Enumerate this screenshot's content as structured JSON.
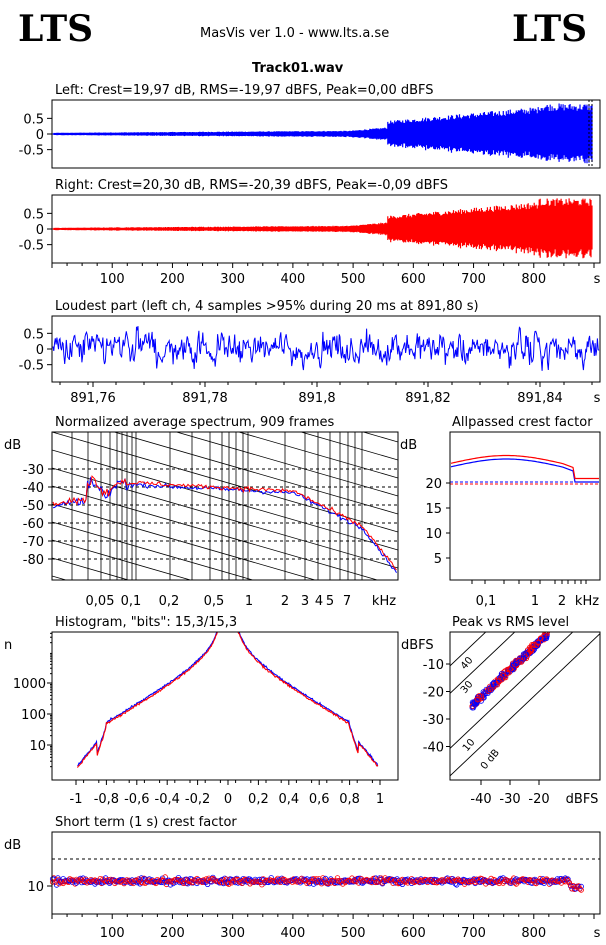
{
  "header": {
    "logo_left": "LTS",
    "logo_right": "LTS",
    "app": "MasVis ver 1.0 - www.lts.a.se",
    "file": "Track01.wav"
  },
  "colors": {
    "left": "#0000ff",
    "right": "#ff0000",
    "grid": "#000000"
  },
  "chart_data": [
    {
      "type": "line",
      "title": "Left: Crest=19,97 dB, RMS=-19,97 dBFS, Peak=0,00 dBFS",
      "series": [
        {
          "name": "left",
          "color": "#0000ff"
        }
      ],
      "ylim": [
        -1,
        1
      ],
      "yticks": [
        "0.5",
        "0",
        "-0.5"
      ],
      "xlim": [
        0,
        900
      ]
    },
    {
      "type": "line",
      "title": "Right: Crest=20,30 dB, RMS=-20,39 dBFS, Peak=-0,09 dBFS",
      "series": [
        {
          "name": "right",
          "color": "#ff0000"
        }
      ],
      "ylim": [
        -1,
        1
      ],
      "yticks": [
        "0.5",
        "0",
        "-0.5"
      ],
      "xlim": [
        0,
        900
      ],
      "xticks": [
        "100",
        "200",
        "300",
        "400",
        "500",
        "600",
        "700",
        "800"
      ],
      "xunit": "s"
    },
    {
      "type": "line",
      "title": "Loudest part (left  ch, 4 samples >95% during 20 ms at 891,80 s)",
      "ylim": [
        -1,
        1
      ],
      "yticks": [
        "0.5",
        "0",
        "-0.5"
      ],
      "xticks": [
        "891,76",
        "891,78",
        "891,8",
        "891,82",
        "891,84"
      ],
      "xunit": "s"
    },
    {
      "type": "line",
      "title": "Normalized average spectrum, 909 frames",
      "ylabel": "dB",
      "yticks": [
        "-30",
        "-40",
        "-50",
        "-60",
        "-70",
        "-80"
      ],
      "xticks": [
        "0,05",
        "0,1",
        "0,2",
        "0,5",
        "1",
        "2",
        "3",
        "4",
        "5",
        "7"
      ],
      "xunit": "kHz"
    },
    {
      "type": "line",
      "title": "Allpassed crest factor",
      "ylabel": "dB",
      "yticks": [
        "20",
        "15",
        "10",
        "5"
      ],
      "xticks": [
        "0,1",
        "1",
        "2"
      ],
      "xunit": "kHz"
    },
    {
      "type": "line",
      "title": "Histogram, \"bits\": 15,3/15,3",
      "ylabel": "n",
      "yticks": [
        "1000",
        "100",
        "10"
      ],
      "xticks": [
        "-1",
        "-0,8",
        "-0,6",
        "-0,4",
        "-0,2",
        "0",
        "0,2",
        "0,4",
        "0,6",
        "0,8",
        "1"
      ]
    },
    {
      "type": "scatter",
      "title": "Peak vs RMS level",
      "ylabel": "dBFS",
      "yticks": [
        "-10",
        "-20",
        "-30",
        "-40"
      ],
      "xticks": [
        "-40",
        "-30",
        "-20"
      ],
      "xunit": "dBFS",
      "crest_labels": [
        "40",
        "30",
        "10",
        "0 dB"
      ]
    },
    {
      "type": "scatter",
      "title": "Short term (1 s) crest factor",
      "ylabel": "dB",
      "yticks": [
        "10"
      ],
      "xticks": [
        "100",
        "200",
        "300",
        "400",
        "500",
        "600",
        "700",
        "800"
      ],
      "xunit": "s"
    }
  ]
}
